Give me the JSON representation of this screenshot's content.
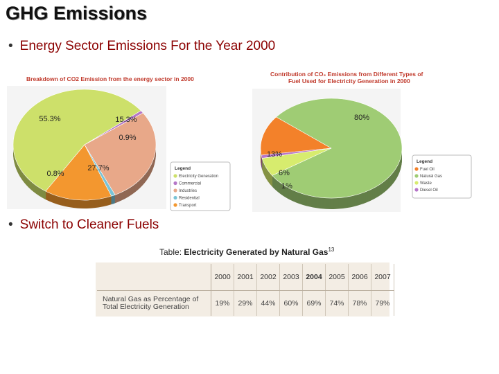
{
  "slide": {
    "title": "GHG Emissions",
    "bullet1": "Energy Sector Emissions For the Year 2000",
    "bullet2": "Switch to Cleaner Fuels"
  },
  "chart_data": [
    {
      "type": "pie",
      "title": "Breakdown of CO2 Emission from the energy sector in 2000",
      "legend_title": "Legend",
      "legend_position": "bottom-right",
      "slices": [
        {
          "label": "Electricity Generation",
          "value": 55.3,
          "display": "55.3%",
          "color": "#cde06a"
        },
        {
          "label": "Commercial",
          "value": 0.8,
          "display": "0.8%",
          "color": "#b577c7"
        },
        {
          "label": "Industries",
          "value": 27.7,
          "display": "27.7%",
          "color": "#e8a889"
        },
        {
          "label": "Residential",
          "value": 0.9,
          "display": "0.9%",
          "color": "#79c3d6"
        },
        {
          "label": "Transport",
          "value": 15.3,
          "display": "15.3%",
          "color": "#f3972f"
        }
      ]
    },
    {
      "type": "pie",
      "title": "Contribution of CO2 Emissions from Different Types of Fuel Used for Electricity Generation in 2000",
      "legend_title": "Legend",
      "legend_position": "right",
      "slices": [
        {
          "label": "Fuel Oil",
          "value": 13,
          "display": "13%",
          "color": "#f3812a"
        },
        {
          "label": "Natural Gas",
          "value": 80,
          "display": "80%",
          "color": "#9fcc74"
        },
        {
          "label": "Waste",
          "value": 6,
          "display": "6%",
          "color": "#d7ec6e"
        },
        {
          "label": "Diesel Oil",
          "value": 1,
          "display": "1%",
          "color": "#b776c9"
        }
      ]
    },
    {
      "type": "table",
      "title_prefix": "Table: ",
      "title_main": "Electricity Generated by Natural Gas",
      "title_sup": "13",
      "row_label_line1": "Natural Gas as Percentage of",
      "row_label_line2": "Total Electricity Generation",
      "columns": [
        "2000",
        "2001",
        "2002",
        "2003",
        "2004",
        "2005",
        "2006",
        "2007"
      ],
      "values": [
        "19%",
        "29%",
        "44%",
        "60%",
        "69%",
        "74%",
        "78%",
        "79%"
      ]
    }
  ]
}
